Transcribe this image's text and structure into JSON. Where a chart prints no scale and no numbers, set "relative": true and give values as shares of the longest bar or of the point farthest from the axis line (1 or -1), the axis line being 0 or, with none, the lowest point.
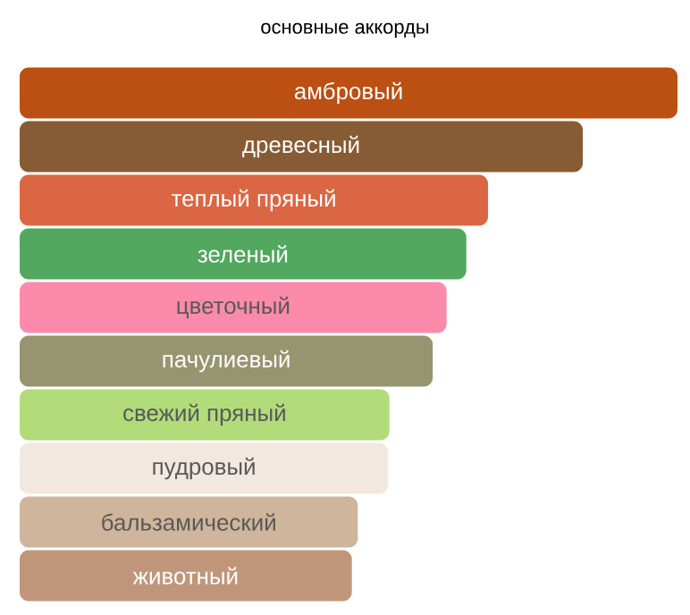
{
  "chart_data": {
    "type": "bar",
    "orientation": "horizontal",
    "relative": true,
    "title": "основные аккорды",
    "categories": [
      "амбровый",
      "древесный",
      "теплый пряный",
      "зеленый",
      "цветочный",
      "пачулиевый",
      "свежий пряный",
      "пудровый",
      "бальзамический",
      "животный"
    ],
    "values": [
      1,
      0.856,
      0.712,
      0.679,
      0.649,
      0.628,
      0.562,
      0.56,
      0.514,
      0.505
    ],
    "colors": [
      "#bc4f12",
      "#875b34",
      "#db6643",
      "#52a85e",
      "#fc8aab",
      "#979470",
      "#b2db7a",
      "#f2e8df",
      "#cfb59b",
      "#c0967a"
    ]
  }
}
